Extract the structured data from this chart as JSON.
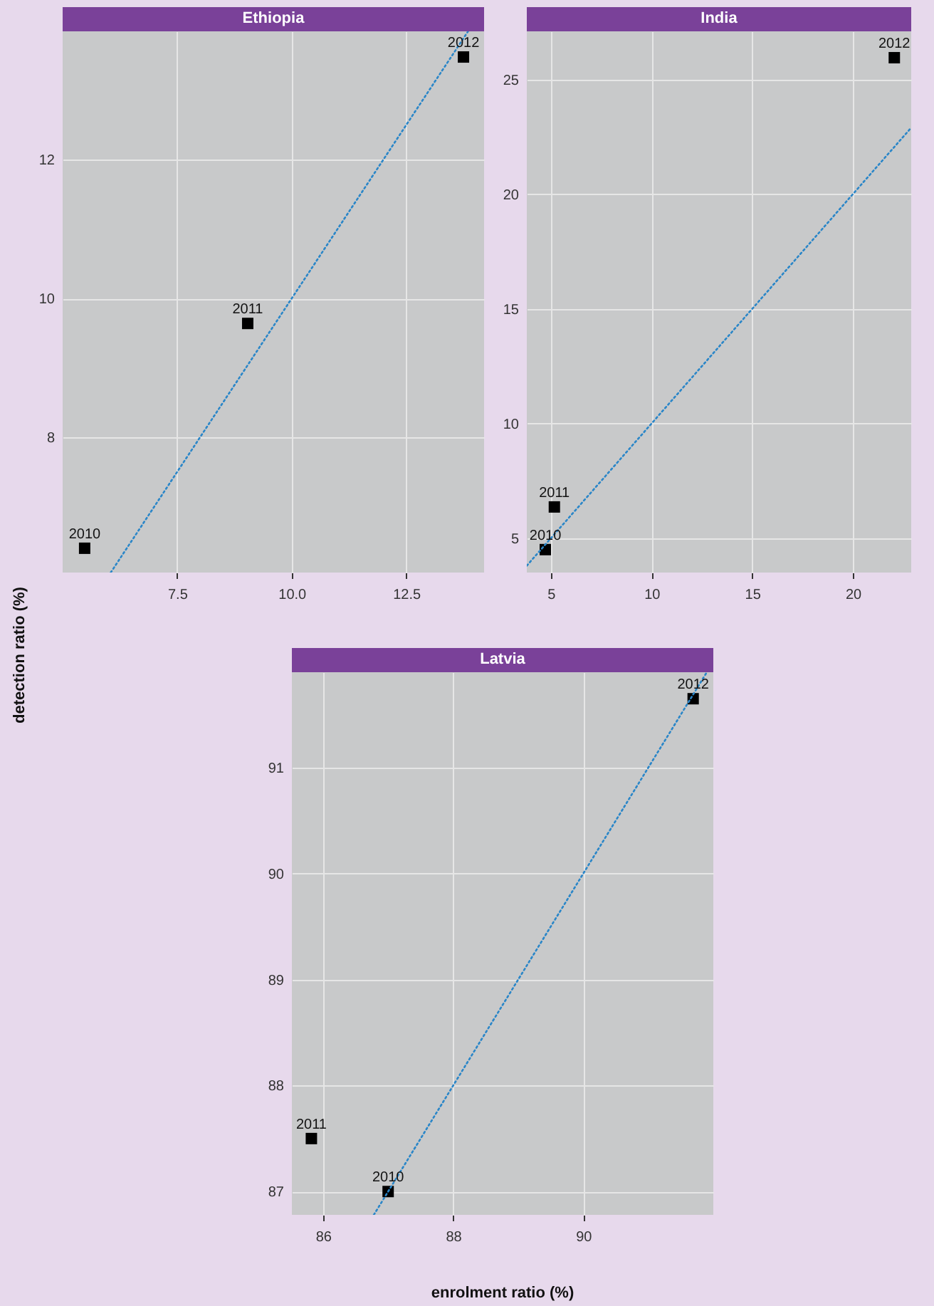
{
  "chart_data": [
    {
      "type": "scatter",
      "title": "Ethiopia",
      "ylabel": "detection ratio (%)",
      "xlim": [
        5.0,
        14.2
      ],
      "ylim": [
        6.05,
        13.85
      ],
      "xticks": [
        7.5,
        {
          "value": 10,
          "label": "10.0"
        },
        12.5
      ],
      "yticks": [
        8,
        10,
        12
      ],
      "grid": true,
      "series": [
        {
          "color": "#000000",
          "marker": "square",
          "x": [
            5.48,
            9.04,
            13.75
          ],
          "values": [
            6.4,
            9.64,
            13.48
          ]
        },
        {
          "type": "line",
          "color": "#2a86c8",
          "line_style": "dotted",
          "marker": "none",
          "x": [
            6.05,
            13.85
          ],
          "values": [
            6.05,
            13.85
          ]
        }
      ],
      "annotations": [
        {
          "text": "2010",
          "x": 5.48,
          "y": 6.4
        },
        {
          "text": "2011",
          "x": 9.04,
          "y": 9.64
        },
        {
          "text": "2012",
          "x": 13.75,
          "y": 13.48
        }
      ]
    },
    {
      "type": "scatter",
      "title": "India",
      "xlim": [
        3.8,
        22.9
      ],
      "ylim": [
        3.5,
        27.1
      ],
      "xticks": [
        5,
        10,
        15,
        20
      ],
      "yticks": [
        5,
        10,
        15,
        20,
        25
      ],
      "grid": true,
      "series": [
        {
          "color": "#000000",
          "marker": "square",
          "x": [
            4.72,
            5.17,
            22.06
          ],
          "values": [
            4.5,
            6.36,
            25.95
          ]
        },
        {
          "type": "line",
          "color": "#2a86c8",
          "line_style": "dotted",
          "marker": "none",
          "x": [
            3.8,
            22.9
          ],
          "values": [
            3.8,
            22.9
          ]
        }
      ],
      "annotations": [
        {
          "text": "2010",
          "x": 4.72,
          "y": 4.5
        },
        {
          "text": "2011",
          "x": 5.17,
          "y": 6.36
        },
        {
          "text": "2012",
          "x": 22.06,
          "y": 25.95
        }
      ]
    },
    {
      "type": "scatter",
      "title": "Latvia",
      "xlabel": "enrolment ratio (%)",
      "xlim": [
        85.52,
        92.0
      ],
      "ylim": [
        86.78,
        91.9
      ],
      "xticks": [
        86,
        88,
        90
      ],
      "yticks": [
        87,
        88,
        89,
        90,
        91
      ],
      "grid": true,
      "series": [
        {
          "color": "#000000",
          "marker": "square",
          "x": [
            87.0,
            85.82,
            91.69
          ],
          "values": [
            87.0,
            87.5,
            91.65
          ]
        },
        {
          "type": "line",
          "color": "#2a86c8",
          "line_style": "dotted",
          "marker": "none",
          "x": [
            86.78,
            91.9
          ],
          "values": [
            86.78,
            91.9
          ]
        }
      ],
      "annotations": [
        {
          "text": "2010",
          "x": 87.0,
          "y": 87.0
        },
        {
          "text": "2011",
          "x": 85.82,
          "y": 87.5
        },
        {
          "text": "2012",
          "x": 91.69,
          "y": 91.65
        }
      ]
    }
  ]
}
